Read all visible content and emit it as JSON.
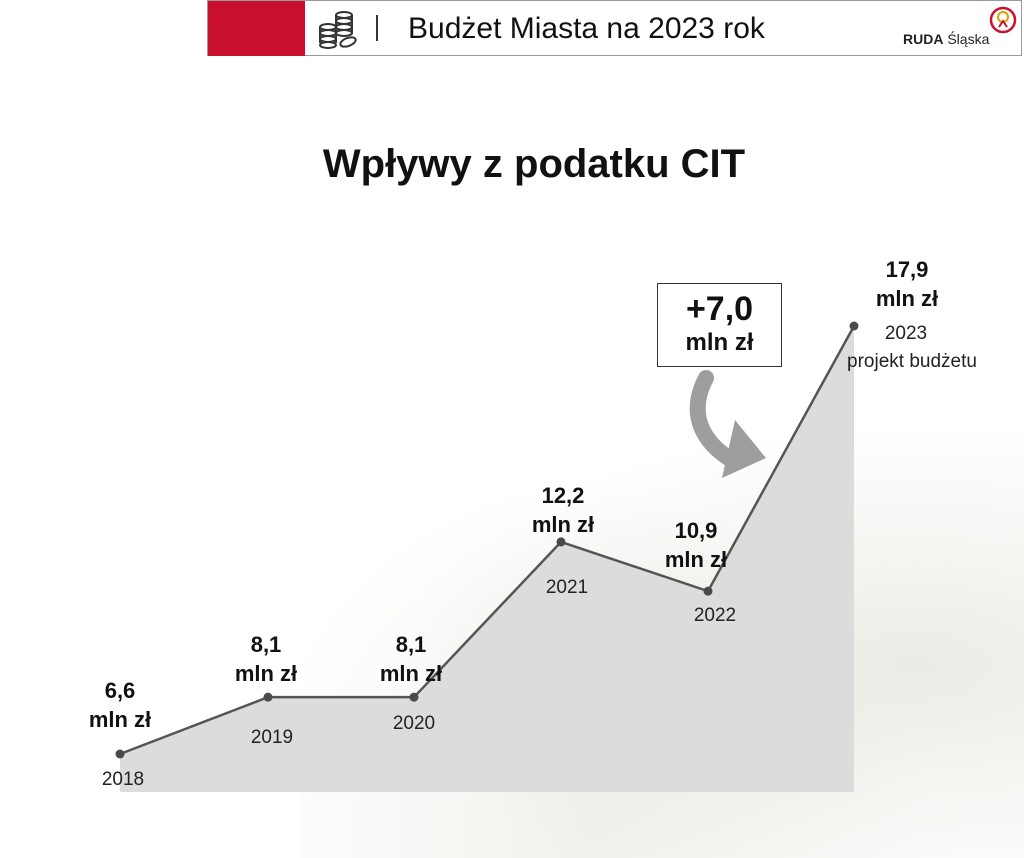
{
  "header": {
    "title": "Budżet Miasta na 2023 rok",
    "logo_bold": "RUDA",
    "logo_regular": "Śląska",
    "accent_color": "#c8102e",
    "icon": "coins-icon"
  },
  "page_title": "Wpływy z podatku CIT",
  "callout": {
    "value": "+7,0",
    "unit": "mln zł"
  },
  "chart_data": {
    "type": "area",
    "title": "Wpływy z podatku CIT",
    "unit": "mln zł",
    "x": [
      "2018",
      "2019",
      "2020",
      "2021",
      "2022",
      "2023"
    ],
    "x_sublabels": [
      "",
      "",
      "",
      "",
      "",
      "projekt budżetu"
    ],
    "values": [
      6.6,
      8.1,
      8.1,
      12.2,
      10.9,
      17.9
    ],
    "value_labels": [
      "6,6",
      "8,1",
      "8,1",
      "12,2",
      "10,9",
      "17,9"
    ],
    "fill_color": "#dcdcdc",
    "line_color": "#555555",
    "grid": false,
    "legend": "none"
  }
}
